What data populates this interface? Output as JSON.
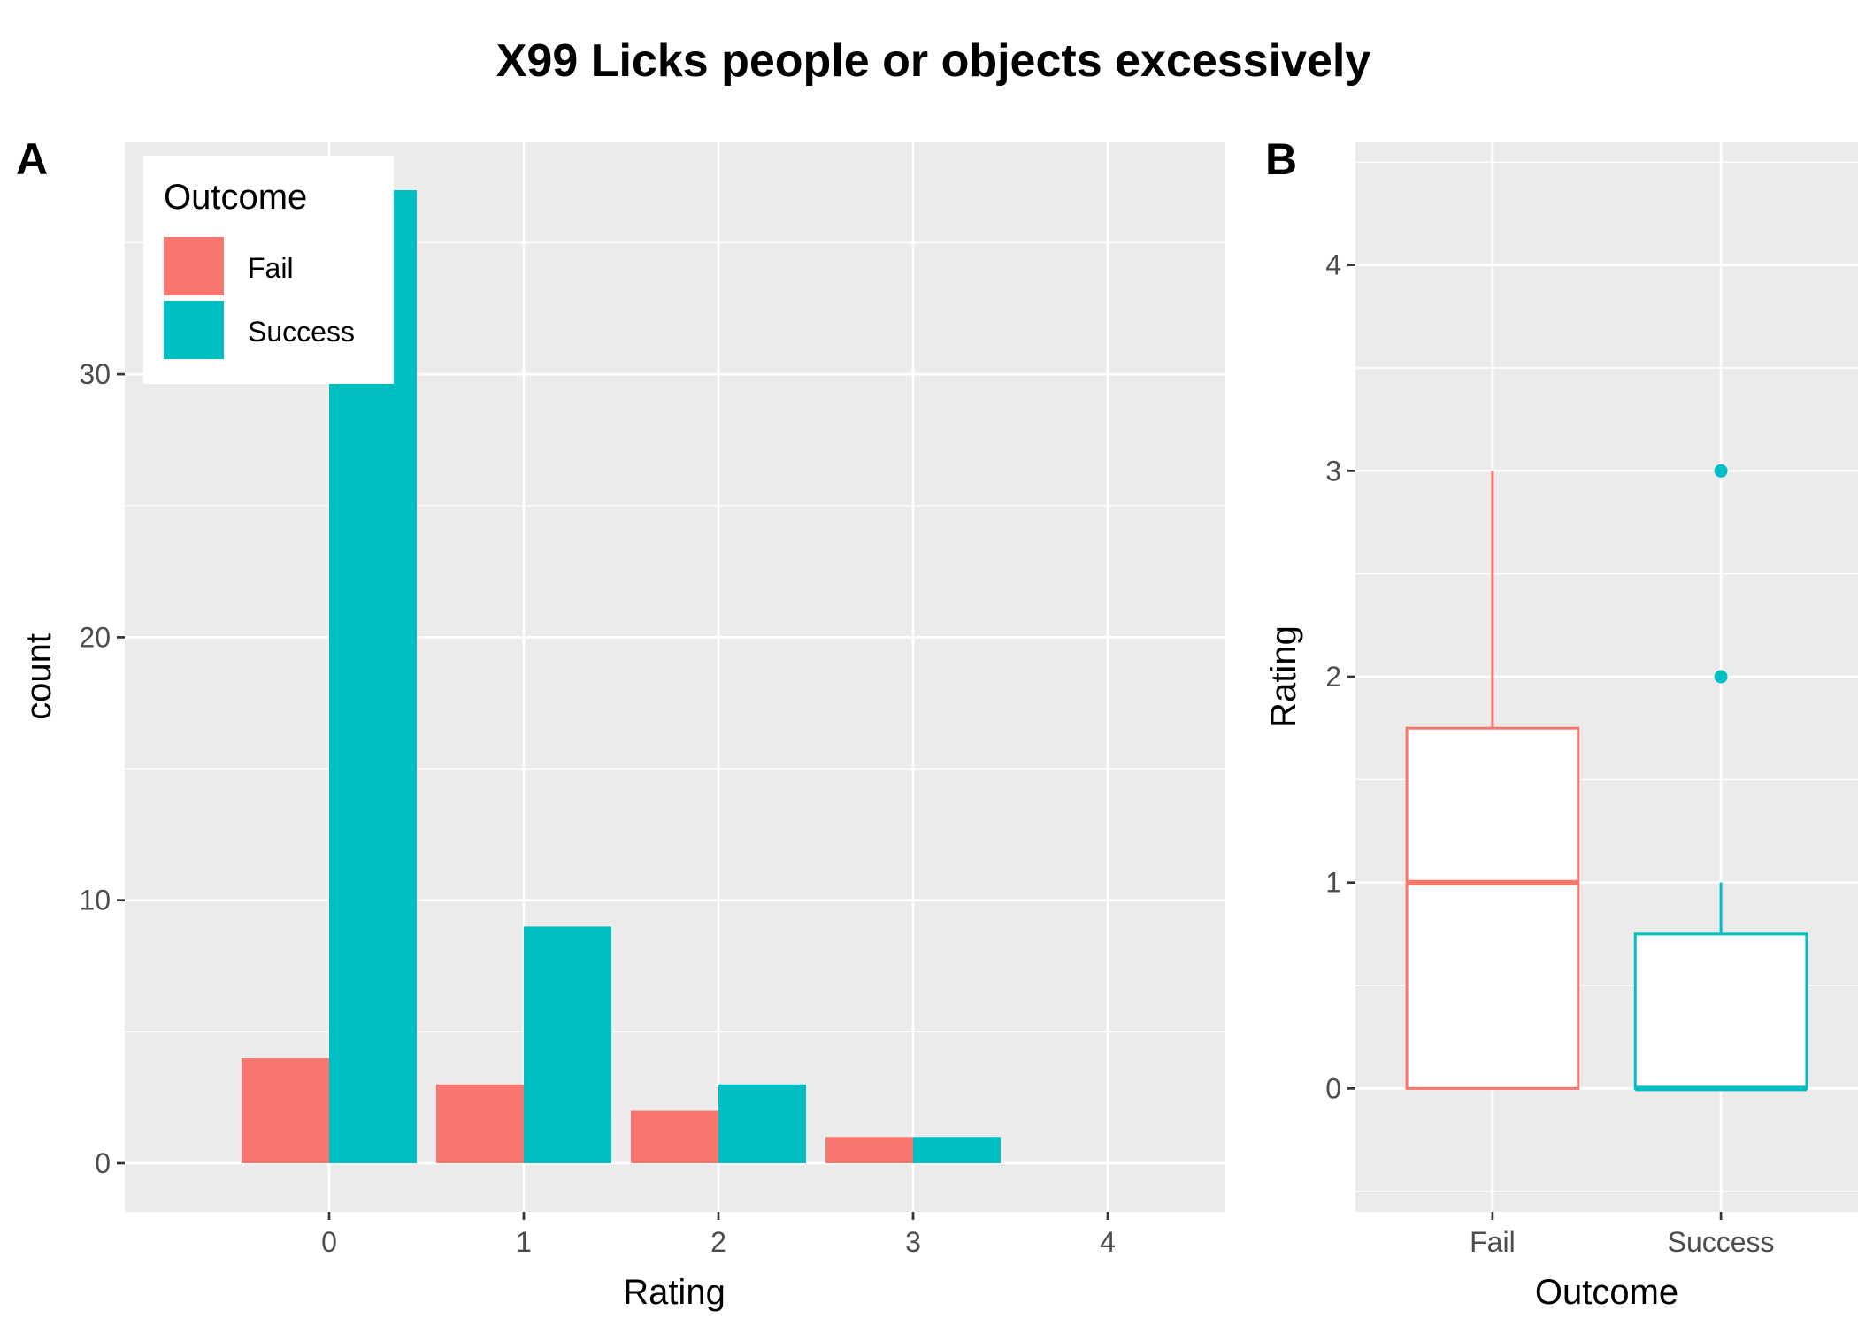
{
  "title": "X99 Licks people or objects excessively",
  "colors": {
    "fail": "#F8766D",
    "success": "#00BFC4",
    "panel_bg": "#EBEBEB",
    "grid": "#FFFFFF"
  },
  "chart_data": [
    {
      "panel": "A",
      "type": "bar",
      "title": "X99 Licks people or objects excessively",
      "xlabel": "Rating",
      "ylabel": "count",
      "categories": [
        0,
        1,
        2,
        3,
        4
      ],
      "series": [
        {
          "name": "Fail",
          "values": [
            4,
            3,
            2,
            1,
            0
          ]
        },
        {
          "name": "Success",
          "values": [
            37,
            9,
            3,
            1,
            0
          ]
        }
      ],
      "xlim": [
        -1.05,
        4.6
      ],
      "ylim": [
        -1.85,
        38.85
      ],
      "yticks": [
        0,
        10,
        20,
        30
      ],
      "legend": {
        "title": "Outcome",
        "entries": [
          "Fail",
          "Success"
        ],
        "position": "top-left"
      }
    },
    {
      "panel": "B",
      "type": "box",
      "xlabel": "Outcome",
      "ylabel": "Rating",
      "categories": [
        "Fail",
        "Success"
      ],
      "boxes": [
        {
          "name": "Fail",
          "min": 0,
          "q1": 0,
          "median": 1,
          "q3": 1.75,
          "max": 3,
          "outliers": []
        },
        {
          "name": "Success",
          "min": 0,
          "q1": 0,
          "median": 0,
          "q3": 0.75,
          "max": 1,
          "outliers": [
            2,
            3
          ]
        }
      ],
      "ylim": [
        -0.6,
        4.6
      ],
      "yticks": [
        0,
        1,
        2,
        3,
        4
      ]
    }
  ]
}
